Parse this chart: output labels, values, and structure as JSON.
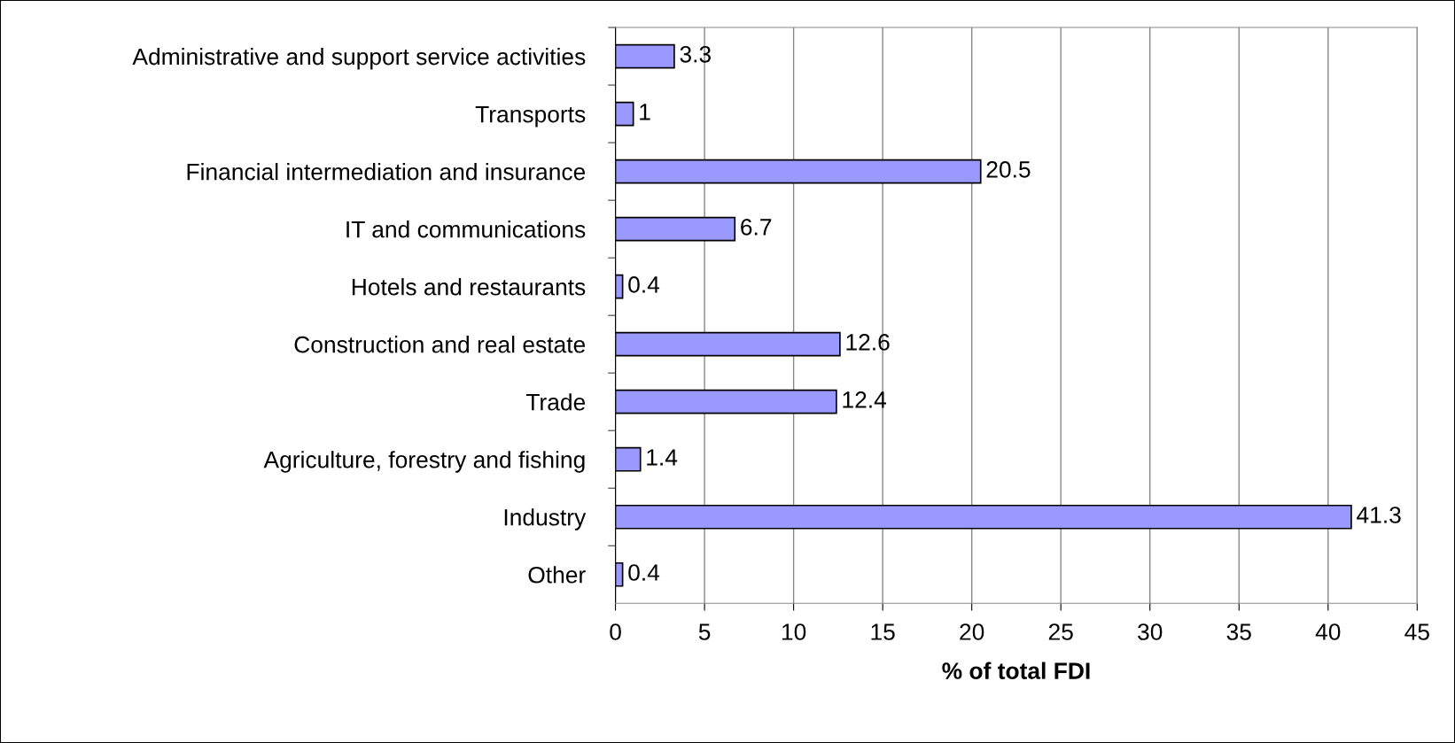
{
  "chart_data": {
    "type": "bar",
    "orientation": "horizontal",
    "xlabel": "% of total FDI",
    "categories": [
      "Administrative and support service activities",
      "Transports",
      "Financial intermediation and insurance",
      "IT and communications",
      "Hotels and restaurants",
      "Construction and real estate",
      "Trade",
      "Agriculture, forestry and fishing",
      "Industry",
      "Other"
    ],
    "values": [
      3.3,
      1,
      20.5,
      6.7,
      0.4,
      12.6,
      12.4,
      1.4,
      41.3,
      0.4
    ],
    "color": "#9999ff",
    "xlim": [
      0,
      45
    ],
    "xticks": [
      0,
      5,
      10,
      15,
      20,
      25,
      30,
      35,
      40,
      45
    ],
    "grid": "x",
    "data_labels": true
  }
}
